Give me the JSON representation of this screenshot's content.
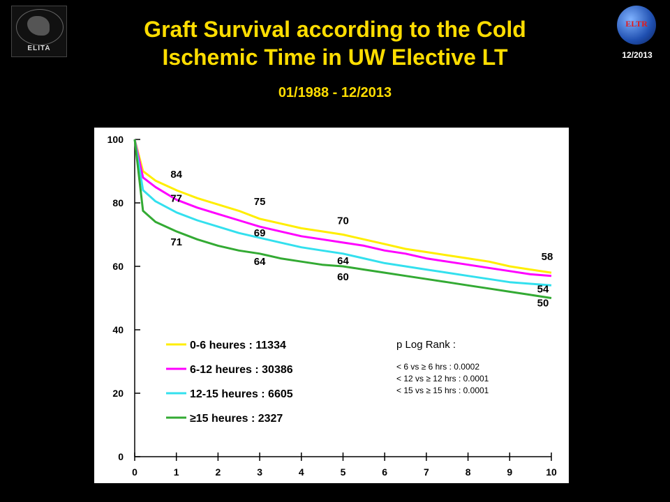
{
  "header": {
    "title_line1": "Graft Survival according to the Cold",
    "title_line2": "Ischemic Time in UW Elective LT",
    "subtitle": "01/1988 - 12/2013",
    "date": "12/2013",
    "logo_left_text": "ELITA",
    "logo_right_text": "ELTR"
  },
  "chart_data": {
    "type": "line",
    "xlim": [
      0,
      10
    ],
    "ylim": [
      0,
      100
    ],
    "x_ticks": [
      0,
      1,
      2,
      3,
      4,
      5,
      6,
      7,
      8,
      9,
      10
    ],
    "y_ticks": [
      0,
      20,
      40,
      60,
      80,
      100
    ],
    "x": [
      0,
      0.2,
      0.5,
      1,
      1.5,
      2,
      2.5,
      3,
      3.5,
      4,
      4.5,
      5,
      5.5,
      6,
      6.5,
      7,
      7.5,
      8,
      8.5,
      9,
      9.5,
      10
    ],
    "series": [
      {
        "name": "0-6 heures : 11334",
        "color": "#ffee00",
        "values": [
          100,
          90,
          87,
          84,
          81.5,
          79.5,
          77.5,
          75,
          73.5,
          72,
          71,
          70,
          68.5,
          67,
          65.5,
          64.5,
          63.5,
          62.5,
          61.5,
          60,
          59,
          58
        ]
      },
      {
        "name": "6-12 heures : 30386",
        "color": "#ff00ff",
        "values": [
          100,
          88,
          85,
          81,
          78.5,
          76.5,
          74.5,
          72.5,
          71,
          69.5,
          68.5,
          67.5,
          66.5,
          65,
          64,
          62.5,
          61.5,
          60.5,
          59.5,
          58.5,
          57.5,
          57
        ]
      },
      {
        "name": "12-15 heures : 6605",
        "color": "#33e0ee",
        "values": [
          100,
          84,
          80.5,
          77,
          74.5,
          72.5,
          70.5,
          69,
          67.5,
          66,
          65,
          64,
          62.5,
          61,
          60,
          59,
          58,
          57,
          56,
          55,
          54.5,
          54
        ]
      },
      {
        "name": "≥15 heures : 2327",
        "color": "#33aa33",
        "values": [
          100,
          77.5,
          74,
          71,
          68.5,
          66.5,
          65,
          64,
          62.5,
          61.5,
          60.5,
          60,
          59,
          58,
          57,
          56,
          55,
          54,
          53,
          52,
          51,
          50
        ]
      }
    ],
    "annotations": [
      {
        "text": "84",
        "x": 1,
        "y": 84
      },
      {
        "text": "77",
        "x": 1,
        "y": 77
      },
      {
        "text": "71",
        "x": 1,
        "y": 71
      },
      {
        "text": "75",
        "x": 3,
        "y": 75
      },
      {
        "text": "69",
        "x": 3,
        "y": 69
      },
      {
        "text": "64",
        "x": 3,
        "y": 64
      },
      {
        "text": "70",
        "x": 5,
        "y": 70
      },
      {
        "text": "64",
        "x": 5,
        "y": 64
      },
      {
        "text": "60",
        "x": 5,
        "y": 60
      },
      {
        "text": "58",
        "x": 10,
        "y": 58
      },
      {
        "text": "54",
        "x": 10,
        "y": 54
      },
      {
        "text": "50",
        "x": 10,
        "y": 50
      }
    ],
    "legend_position": "bottom-left",
    "stats": {
      "title": "p Log Rank :",
      "lines": [
        "< 6 vs ≥ 6 hrs : 0.0002",
        "< 12 vs ≥ 12 hrs : 0.0001",
        "< 15 vs ≥ 15 hrs : 0.0001"
      ]
    },
    "grid": false
  }
}
